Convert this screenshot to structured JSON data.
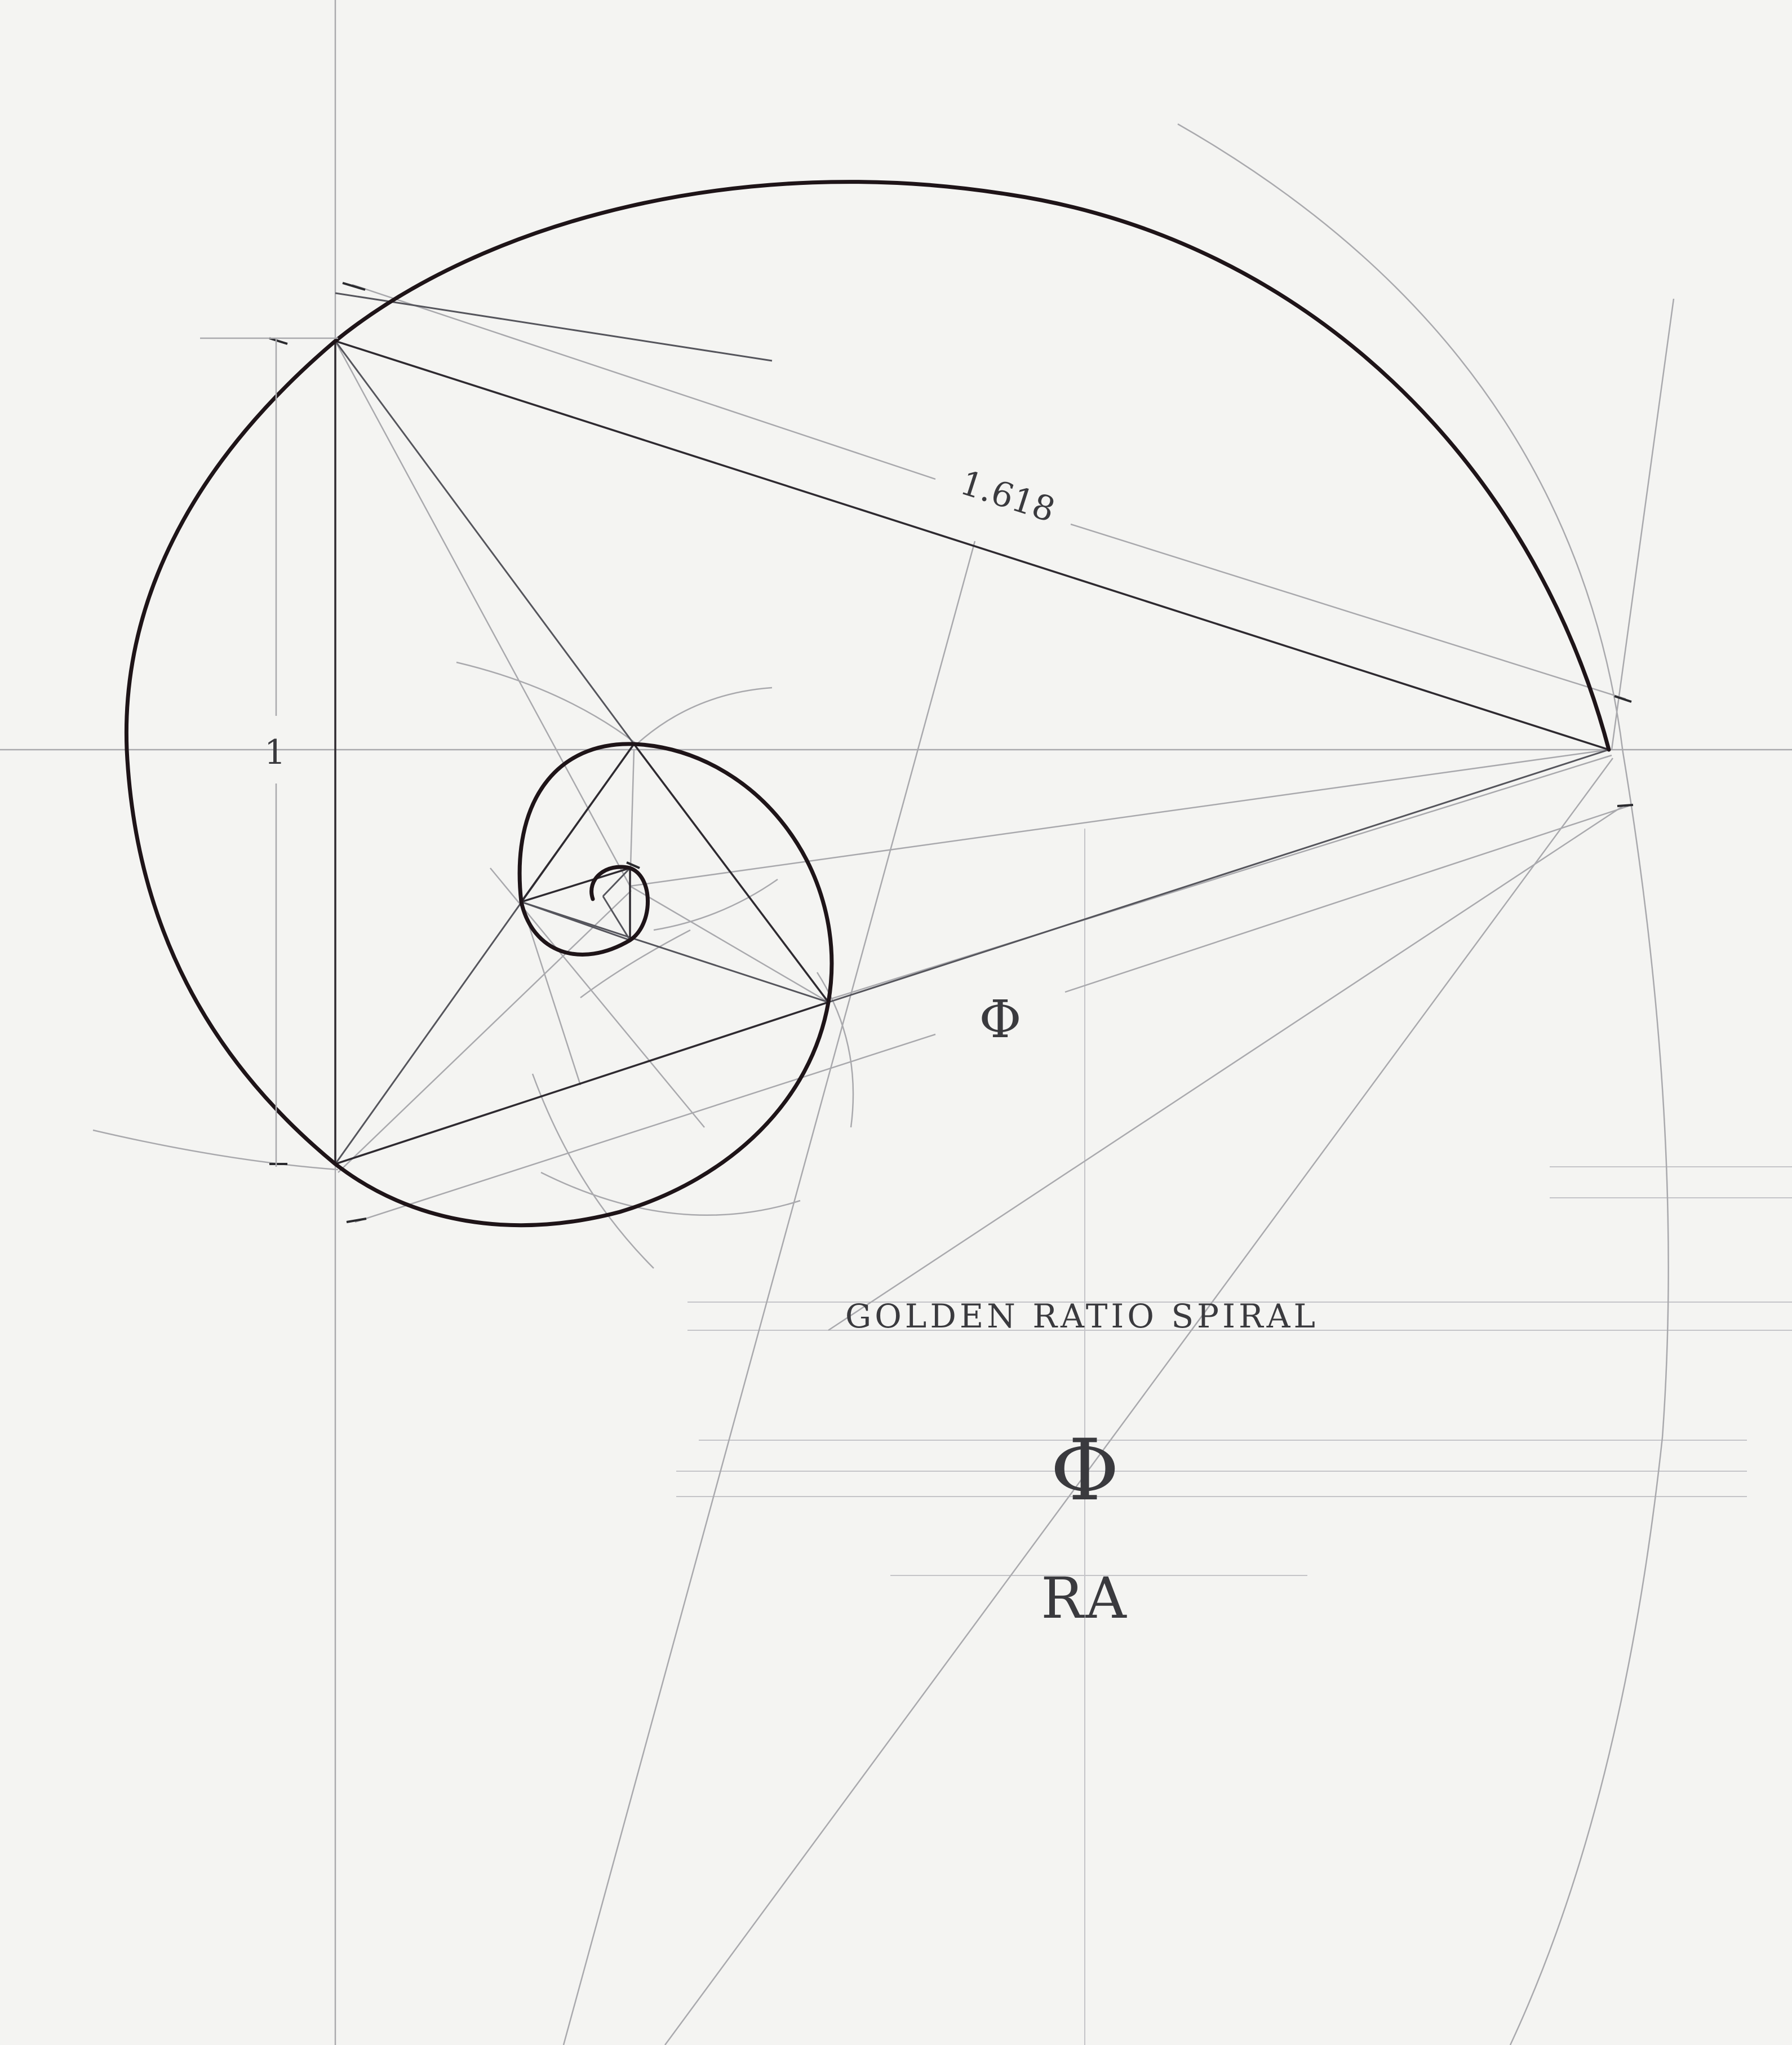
{
  "labels": {
    "dimension_short": "1",
    "dimension_long": "1.618",
    "phi_marker": "Φ",
    "title": "GOLDEN RATIO SPIRAL",
    "phi_symbol": "Φ",
    "monogram": "RA"
  },
  "colors": {
    "paper": "#f4f4f2",
    "spiral_ink": "#1e1418",
    "construction_line": "#55555c",
    "guide_line": "#a9a9ad",
    "lettering": "#3a3a3e"
  }
}
